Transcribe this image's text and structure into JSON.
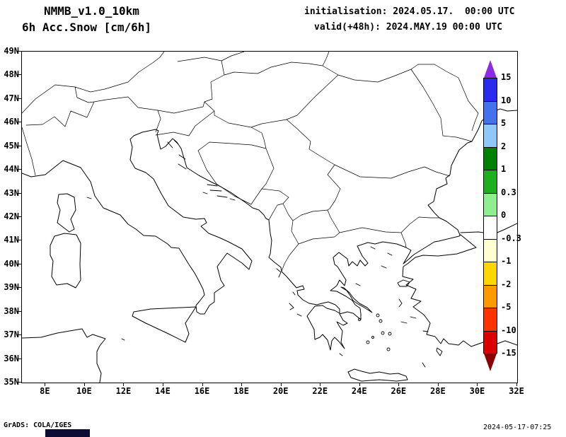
{
  "header": {
    "model_title": "NMMB_v1.0_10km",
    "field_title": "6h Acc.Snow [cm/6h]",
    "init_line": "initialisation: 2024.05.17.  00:00 UTC",
    "valid_line": "valid(+48h): 2024.MAY.19 00:00 UTC"
  },
  "map": {
    "lat_labels": [
      "49N",
      "48N",
      "47N",
      "46N",
      "45N",
      "44N",
      "43N",
      "42N",
      "41N",
      "40N",
      "39N",
      "38N",
      "37N",
      "36N",
      "35N"
    ],
    "lon_labels": [
      "8E",
      "10E",
      "12E",
      "14E",
      "16E",
      "18E",
      "20E",
      "22E",
      "24E",
      "26E",
      "28E",
      "30E",
      "32E"
    ]
  },
  "colorbar": {
    "labels": [
      "15",
      "10",
      "5",
      "2",
      "1",
      "0.3",
      "0",
      "-0.3",
      "-1",
      "-2",
      "-5",
      "-10",
      "-15"
    ],
    "levels": [
      15,
      10,
      5,
      2,
      1,
      0.3,
      0,
      -0.3,
      -1,
      -2,
      -5,
      -10,
      -15
    ],
    "segment_colors": [
      "#2b2bee",
      "#4472ee",
      "#8fc8f8",
      "#008000",
      "#1fae1f",
      "#90ee90",
      "#ffffff",
      "#ffffd0",
      "#ffd700",
      "#ff9900",
      "#ff3300",
      "#dd0000"
    ],
    "arrow_top_color": "#8c2be0",
    "arrow_bottom_color": "#8b0000"
  },
  "footer": {
    "credit": "GrADS: COLA/IGES",
    "timestamp": "2024-05-17-07:25"
  }
}
